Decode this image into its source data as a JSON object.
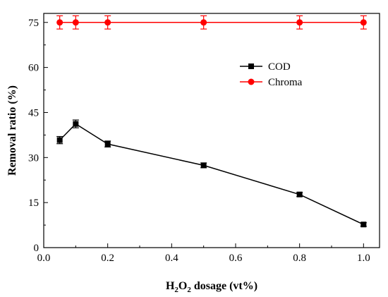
{
  "chart_data": {
    "type": "line",
    "title": "",
    "xlabel_parts": {
      "a": "H",
      "sub1": "2",
      "b": "O",
      "sub2": "2",
      "c": " dosage (vt%)"
    },
    "ylabel": "Removal ratio (%)",
    "xlim": [
      0.0,
      1.05
    ],
    "ylim": [
      0,
      78
    ],
    "xticks": [
      0.0,
      0.2,
      0.4,
      0.6,
      0.8,
      1.0
    ],
    "xtick_labels": [
      "0.0",
      "0.2",
      "0.4",
      "0.6",
      "0.8",
      "1.0"
    ],
    "yticks": [
      0,
      15,
      30,
      45,
      60,
      75
    ],
    "ytick_labels": [
      "0",
      "15",
      "30",
      "45",
      "60",
      "75"
    ],
    "grid": false,
    "legend_position": "upper-right",
    "series": [
      {
        "name": "COD",
        "color": "#000000",
        "marker": "square",
        "x": [
          0.05,
          0.1,
          0.2,
          0.5,
          0.8,
          1.0
        ],
        "y": [
          35.8,
          41.2,
          34.5,
          27.4,
          17.7,
          7.7
        ],
        "err": [
          1.2,
          1.3,
          1.0,
          0.8,
          0.7,
          0.6
        ]
      },
      {
        "name": "Chroma",
        "color": "#ff0000",
        "marker": "circle",
        "x": [
          0.05,
          0.1,
          0.2,
          0.5,
          0.8,
          1.0
        ],
        "y": [
          75,
          75,
          75,
          75,
          75,
          75
        ],
        "err": [
          2.2,
          2.2,
          2.2,
          2.2,
          2.2,
          2.2
        ]
      }
    ]
  }
}
